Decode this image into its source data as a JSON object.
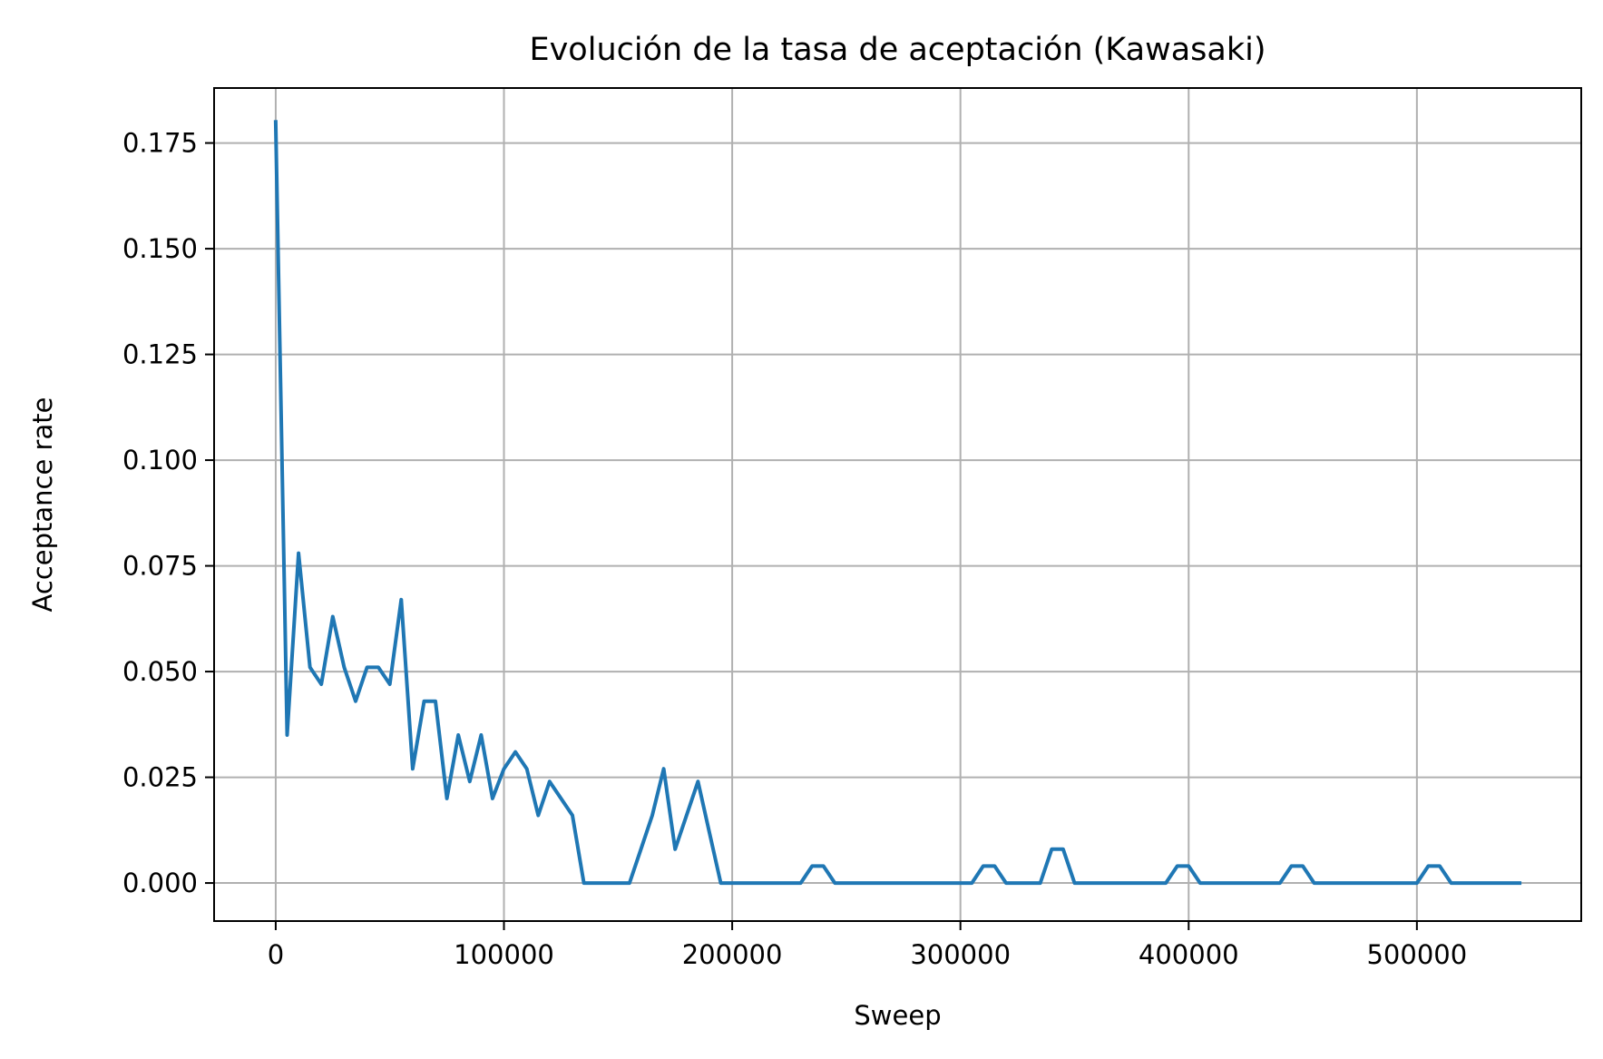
{
  "chart_data": {
    "type": "line",
    "title": "Evolución de la tasa de aceptación (Kawasaki)",
    "xlabel": "Sweep",
    "ylabel": "Acceptance rate",
    "xlim": [
      -27000,
      572000
    ],
    "ylim": [
      -0.009,
      0.188
    ],
    "grid": true,
    "legend": "none",
    "line_color": "#1f77b4",
    "x_ticks": [
      0,
      100000,
      200000,
      300000,
      400000,
      500000
    ],
    "x_tick_labels": [
      "0",
      "100000",
      "200000",
      "300000",
      "400000",
      "500000"
    ],
    "y_ticks": [
      0.0,
      0.025,
      0.05,
      0.075,
      0.1,
      0.125,
      0.15,
      0.175
    ],
    "y_tick_labels": [
      "0.000",
      "0.025",
      "0.050",
      "0.075",
      "0.100",
      "0.125",
      "0.150",
      "0.175"
    ],
    "series": [
      {
        "x": [
          0,
          5000,
          10000,
          15000,
          20000,
          25000,
          30000,
          35000,
          40000,
          45000,
          50000,
          55000,
          60000,
          65000,
          70000,
          75000,
          80000,
          85000,
          90000,
          95000,
          100000,
          105000,
          110000,
          115000,
          120000,
          125000,
          130000,
          135000,
          140000,
          145000,
          150000,
          155000,
          160000,
          165000,
          170000,
          175000,
          180000,
          185000,
          190000,
          195000,
          200000,
          205000,
          210000,
          215000,
          220000,
          225000,
          230000,
          235000,
          240000,
          245000,
          250000,
          255000,
          260000,
          265000,
          270000,
          275000,
          280000,
          285000,
          290000,
          295000,
          300000,
          305000,
          310000,
          315000,
          320000,
          325000,
          330000,
          335000,
          340000,
          345000,
          350000,
          355000,
          360000,
          365000,
          370000,
          375000,
          380000,
          385000,
          390000,
          395000,
          400000,
          405000,
          410000,
          415000,
          420000,
          425000,
          430000,
          435000,
          440000,
          445000,
          450000,
          455000,
          460000,
          465000,
          470000,
          475000,
          480000,
          485000,
          490000,
          495000,
          500000,
          505000,
          510000,
          515000,
          520000,
          525000,
          530000,
          535000,
          540000,
          545000
        ],
        "values": [
          0.18,
          0.035,
          0.078,
          0.051,
          0.047,
          0.063,
          0.051,
          0.043,
          0.051,
          0.051,
          0.047,
          0.067,
          0.027,
          0.043,
          0.043,
          0.02,
          0.035,
          0.024,
          0.035,
          0.02,
          0.027,
          0.031,
          0.027,
          0.016,
          0.024,
          0.02,
          0.016,
          0.0,
          0.0,
          0.0,
          0.0,
          0.0,
          0.008,
          0.016,
          0.027,
          0.008,
          0.016,
          0.024,
          0.012,
          0.0,
          0.0,
          0.0,
          0.0,
          0.0,
          0.0,
          0.0,
          0.0,
          0.004,
          0.004,
          0.0,
          0.0,
          0.0,
          0.0,
          0.0,
          0.0,
          0.0,
          0.0,
          0.0,
          0.0,
          0.0,
          0.0,
          0.0,
          0.004,
          0.004,
          0.0,
          0.0,
          0.0,
          0.0,
          0.008,
          0.008,
          0.0,
          0.0,
          0.0,
          0.0,
          0.0,
          0.0,
          0.0,
          0.0,
          0.0,
          0.004,
          0.004,
          0.0,
          0.0,
          0.0,
          0.0,
          0.0,
          0.0,
          0.0,
          0.0,
          0.004,
          0.004,
          0.0,
          0.0,
          0.0,
          0.0,
          0.0,
          0.0,
          0.0,
          0.0,
          0.0,
          0.0,
          0.004,
          0.004,
          0.0,
          0.0,
          0.0,
          0.0,
          0.0,
          0.0,
          0.0
        ]
      }
    ]
  }
}
